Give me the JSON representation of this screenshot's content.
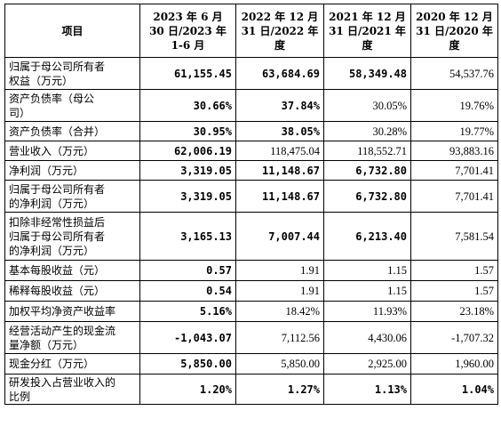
{
  "header": {
    "col0": "项目",
    "col1": [
      "2023 年 6 月",
      "30 日/2023 年",
      "1-6 月"
    ],
    "col2": [
      "2022 年 12 月",
      "31 日/2022 年",
      "度"
    ],
    "col3": [
      "2021 年 12 月",
      "31 日/2021 年",
      "度"
    ],
    "col4": [
      "2020 年 12 月",
      "31 日/2020 年",
      "度"
    ]
  },
  "rows": [
    {
      "label": [
        "归属于母公司所有者",
        "权益（万元）"
      ],
      "values": [
        "61,155.45",
        "63,684.69",
        "58,349.48",
        "54,537.76"
      ],
      "bold": [
        true,
        true,
        true,
        false
      ]
    },
    {
      "label": [
        "资产负债率（母公",
        "司）"
      ],
      "values": [
        "30.66%",
        "37.84%",
        "30.05%",
        "19.76%"
      ],
      "bold": [
        true,
        true,
        false,
        false
      ]
    },
    {
      "label": [
        "资产负债率（合并）"
      ],
      "values": [
        "30.95%",
        "38.05%",
        "30.28%",
        "19.77%"
      ],
      "bold": [
        true,
        true,
        false,
        false
      ]
    },
    {
      "label": [
        "营业收入（万元）"
      ],
      "values": [
        "62,006.19",
        "118,475.04",
        "118,552.71",
        "93,883.16"
      ],
      "bold": [
        true,
        false,
        false,
        false
      ]
    },
    {
      "label": [
        "净利润（万元）"
      ],
      "values": [
        "3,319.05",
        "11,148.67",
        "6,732.80",
        "7,701.41"
      ],
      "bold": [
        true,
        true,
        true,
        false
      ]
    },
    {
      "label": [
        "归属于母公司所有者",
        "的净利润（万元）"
      ],
      "values": [
        "3,319.05",
        "11,148.67",
        "6,732.80",
        "7,701.41"
      ],
      "bold": [
        true,
        true,
        true,
        false
      ]
    },
    {
      "label": [
        "扣除非经常性损益后",
        "归属于母公司所有者",
        "的净利润（万元）"
      ],
      "values": [
        "3,165.13",
        "7,007.44",
        "6,213.40",
        "7,581.54"
      ],
      "bold": [
        true,
        true,
        true,
        false
      ]
    },
    {
      "label": [
        "基本每股收益（元）"
      ],
      "values": [
        "0.57",
        "1.91",
        "1.15",
        "1.57"
      ],
      "bold": [
        true,
        false,
        false,
        false
      ]
    },
    {
      "label": [
        "稀释每股收益（元）"
      ],
      "values": [
        "0.54",
        "1.91",
        "1.15",
        "1.57"
      ],
      "bold": [
        true,
        false,
        false,
        false
      ]
    },
    {
      "label": [
        "加权平均净资产收益率"
      ],
      "values": [
        "5.16%",
        "18.42%",
        "11.93%",
        "23.18%"
      ],
      "bold": [
        true,
        false,
        false,
        false
      ]
    },
    {
      "label": [
        "经营活动产生的现金流",
        "量净额（万元）"
      ],
      "values": [
        "-1,043.07",
        "7,112.56",
        "4,430.06",
        "-1,707.32"
      ],
      "bold": [
        true,
        false,
        false,
        false
      ]
    },
    {
      "label": [
        "现金分红（万元）"
      ],
      "values": [
        "5,850.00",
        "5,850.00",
        "2,925.00",
        "1,960.00"
      ],
      "bold": [
        true,
        false,
        false,
        false
      ]
    },
    {
      "label": [
        "研发投入占营业收入的",
        "比例"
      ],
      "values": [
        "1.20%",
        "1.27%",
        "1.13%",
        "1.04%"
      ],
      "bold": [
        true,
        true,
        true,
        true
      ]
    }
  ]
}
